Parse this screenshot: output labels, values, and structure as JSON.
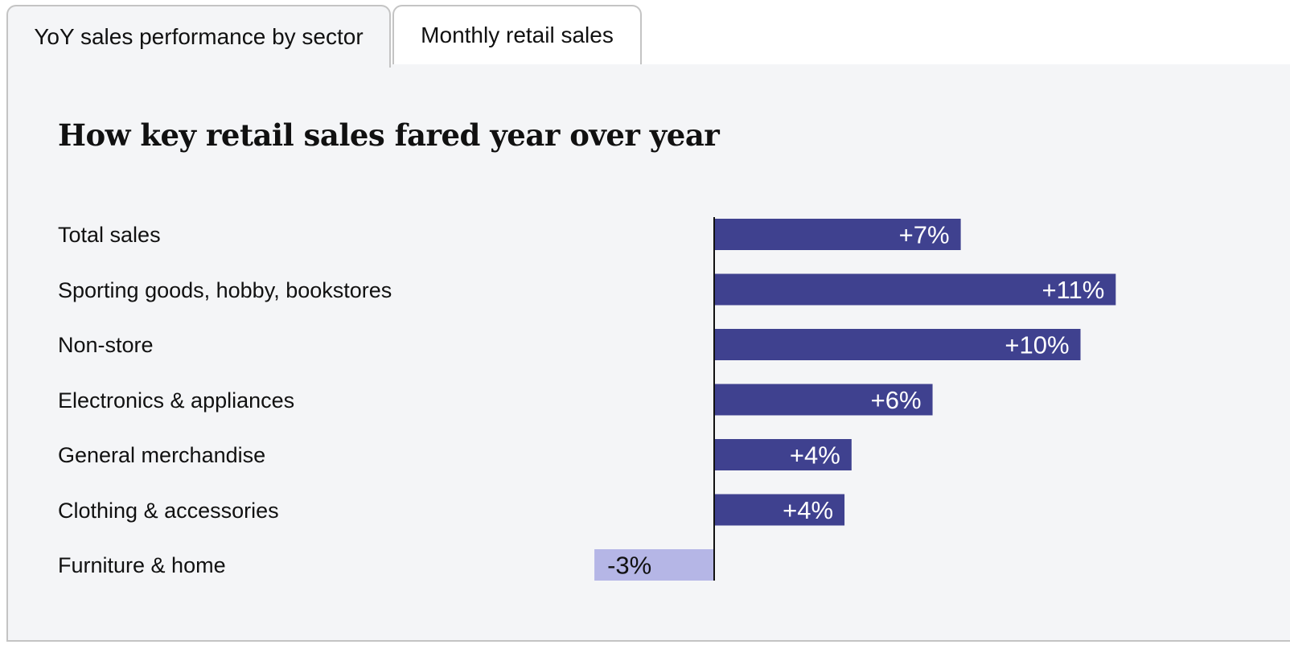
{
  "tabs": [
    {
      "label": "YoY sales performance by sector",
      "active": true
    },
    {
      "label": "Monthly retail sales",
      "active": false
    }
  ],
  "colors": {
    "positive_bar": "#3f418f",
    "negative_bar": "#b5b6e6",
    "positive_label": "#ffffff",
    "negative_label": "#111111",
    "panel_bg": "#f4f5f7",
    "axis": "#111111"
  },
  "chart_data": {
    "type": "bar",
    "orientation": "horizontal",
    "title": "How key retail sales fared year over year",
    "categories": [
      "Total sales",
      "Sporting goods, hobby, bookstores",
      "Non-store",
      "Electronics & appliances",
      "General merchandise",
      "Clothing & accessories",
      "Furniture & home"
    ],
    "values": [
      7,
      11.4,
      10.4,
      6.2,
      3.9,
      3.7,
      -3.4
    ],
    "data_labels": [
      "+7%",
      "+11%",
      "+10%",
      "+6%",
      "+4%",
      "+4%",
      "-3%"
    ],
    "unit": "%",
    "grid": false,
    "legend": "none"
  }
}
